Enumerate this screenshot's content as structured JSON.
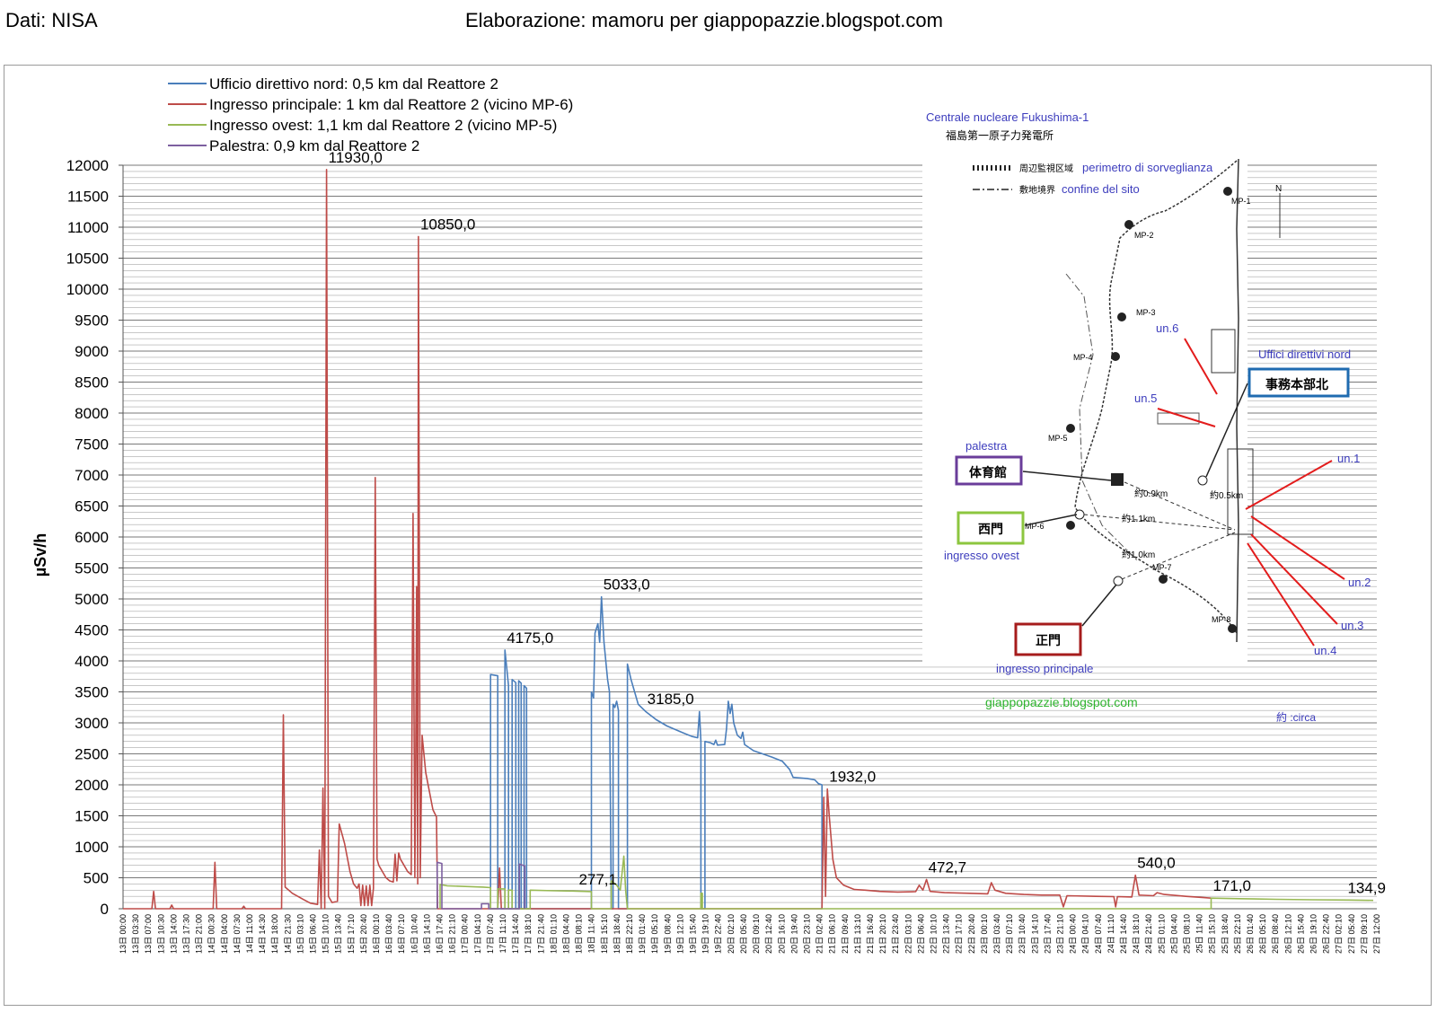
{
  "header": {
    "source": "Dati: NISA",
    "credit": "Elaborazione: mamoru per giappopazzie.blogspot.com"
  },
  "colors": {
    "nord": "#4a7ebb",
    "principale": "#be4b48",
    "ovest": "#98b954",
    "palestra": "#7d60a0",
    "grid": "#8c8c8c"
  },
  "chart_data": {
    "type": "line",
    "title": "",
    "xlabel": "",
    "ylabel": "µSv/h",
    "ylim": [
      0,
      12000
    ],
    "yticks": [
      0,
      500,
      1000,
      1500,
      2000,
      2500,
      3000,
      3500,
      4000,
      4500,
      5000,
      5500,
      6000,
      6500,
      7000,
      7500,
      8000,
      8500,
      9000,
      9500,
      10000,
      10500,
      11000,
      11500,
      12000
    ],
    "grid": true,
    "legend_position": "top-left",
    "x_time_labels": [
      "13日 00:00",
      "13日 03:30",
      "13日 07:00",
      "13日 10:30",
      "13日 14:00",
      "13日 17:30",
      "13日 21:00",
      "14日 00:30",
      "14日 04:00",
      "14日 07:30",
      "14日 11:00",
      "14日 14:30",
      "14日 18:00",
      "14日 21:30",
      "15日 03:10",
      "15日 06:40",
      "15日 10:10",
      "15日 13:40",
      "15日 17:10",
      "15日 20:40",
      "16日 00:10",
      "16日 03:40",
      "16日 07:10",
      "16日 10:40",
      "16日 14:10",
      "16日 17:40",
      "16日 21:10",
      "17日 00:40",
      "17日 04:10",
      "17日 07:40",
      "17日 11:10",
      "17日 14:40",
      "17日 18:10",
      "17日 21:40",
      "18日 01:10",
      "18日 04:40",
      "18日 08:10",
      "18日 11:40",
      "18日 15:10",
      "18日 18:40",
      "18日 22:10",
      "19日 01:40",
      "19日 05:10",
      "19日 08:40",
      "19日 12:10",
      "19日 15:40",
      "19日 19:10",
      "19日 22:40",
      "20日 02:10",
      "20日 05:40",
      "20日 09:10",
      "20日 12:40",
      "20日 16:10",
      "20日 19:40",
      "20日 23:10",
      "21日 02:40",
      "21日 06:10",
      "21日 09:40",
      "21日 13:10",
      "21日 16:40",
      "21日 20:10",
      "21日 23:40",
      "22日 03:10",
      "22日 06:40",
      "22日 10:10",
      "22日 13:40",
      "22日 17:10",
      "22日 20:40",
      "23日 00:10",
      "23日 03:40",
      "23日 07:10",
      "23日 10:40",
      "23日 14:10",
      "23日 17:40",
      "23日 21:10",
      "24日 00:40",
      "24日 04:10",
      "24日 07:40",
      "24日 11:10",
      "24日 14:40",
      "24日 18:10",
      "24日 21:40",
      "25日 01:10",
      "25日 04:40",
      "25日 08:10",
      "25日 11:40",
      "25日 15:10",
      "25日 18:40",
      "25日 22:10",
      "26日 01:40",
      "26日 05:10",
      "26日 08:40",
      "26日 12:10",
      "26日 15:40",
      "26日 19:10",
      "26日 22:40",
      "27日 02:10",
      "27日 05:40",
      "27日 09:10",
      "27日 12:00"
    ],
    "x_range_hours": [
      0,
      348
    ],
    "series": [
      {
        "name": "Ufficio direttivo nord: 0,5 km dal Reattore 2",
        "color": "#4a7ebb",
        "points": [
          [
            102,
            0
          ],
          [
            102,
            3780
          ],
          [
            104,
            3760
          ],
          [
            104,
            0
          ],
          [
            106,
            0
          ],
          [
            106,
            4175
          ],
          [
            107,
            3600
          ],
          [
            107,
            0
          ],
          [
            108,
            0
          ],
          [
            108,
            3700
          ],
          [
            109,
            3650
          ],
          [
            109,
            0
          ],
          [
            109.8,
            0
          ],
          [
            109.8,
            3680
          ],
          [
            110.5,
            3640
          ],
          [
            110.5,
            0
          ],
          [
            111.3,
            0
          ],
          [
            111.3,
            3600
          ],
          [
            112,
            3560
          ],
          [
            112,
            0
          ],
          [
            130,
            0
          ],
          [
            130,
            3500
          ],
          [
            130.6,
            3400
          ],
          [
            131,
            4450
          ],
          [
            131.8,
            4600
          ],
          [
            132.3,
            4300
          ],
          [
            132.8,
            5033
          ],
          [
            133.5,
            4300
          ],
          [
            134.5,
            3700
          ],
          [
            135,
            3500
          ],
          [
            135.5,
            0
          ],
          [
            136,
            0
          ],
          [
            136,
            3300
          ],
          [
            136.5,
            3250
          ],
          [
            137,
            3350
          ],
          [
            137.5,
            3200
          ],
          [
            137.5,
            0
          ],
          [
            140,
            0
          ],
          [
            140,
            3950
          ],
          [
            141,
            3700
          ],
          [
            142,
            3500
          ],
          [
            143,
            3300
          ],
          [
            145,
            3185
          ],
          [
            148,
            3050
          ],
          [
            151,
            2950
          ],
          [
            155,
            2850
          ],
          [
            158,
            2780
          ],
          [
            159.5,
            2760
          ],
          [
            160,
            3180
          ],
          [
            160.4,
            2700
          ],
          [
            160.4,
            0
          ],
          [
            161.5,
            0
          ],
          [
            161.5,
            2700
          ],
          [
            163,
            2680
          ],
          [
            164,
            2650
          ],
          [
            164.5,
            2720
          ],
          [
            165,
            2640
          ],
          [
            167,
            2650
          ],
          [
            167.5,
            2900
          ],
          [
            168,
            3350
          ],
          [
            168.5,
            3150
          ],
          [
            169,
            3300
          ],
          [
            169.5,
            3000
          ],
          [
            170.5,
            2800
          ],
          [
            171.5,
            2750
          ],
          [
            172,
            2850
          ],
          [
            172.5,
            2650
          ],
          [
            175,
            2550
          ],
          [
            180,
            2450
          ],
          [
            183,
            2380
          ],
          [
            185,
            2250
          ],
          [
            186,
            2120
          ],
          [
            190,
            2100
          ],
          [
            192,
            2080
          ],
          [
            193,
            2020
          ],
          [
            194,
            2000
          ],
          [
            194,
            0
          ]
        ]
      },
      {
        "name": "Ingresso principale: 1 km dal Reattore 2 (vicino MP-6)",
        "color": "#be4b48",
        "points": [
          [
            0,
            0
          ],
          [
            8,
            0
          ],
          [
            8.5,
            280
          ],
          [
            9,
            0
          ],
          [
            13,
            0
          ],
          [
            13.5,
            60
          ],
          [
            14,
            0
          ],
          [
            25,
            0
          ],
          [
            25.5,
            750
          ],
          [
            26,
            0
          ],
          [
            33,
            0
          ],
          [
            33.5,
            40
          ],
          [
            34,
            0
          ],
          [
            44,
            0
          ],
          [
            44.5,
            3130
          ],
          [
            45,
            350
          ],
          [
            47,
            250
          ],
          [
            50,
            150
          ],
          [
            52,
            90
          ],
          [
            54,
            70
          ],
          [
            54.5,
            950
          ],
          [
            55,
            0
          ],
          [
            55.5,
            1950
          ],
          [
            56,
            0
          ],
          [
            56.5,
            11930
          ],
          [
            57,
            200
          ],
          [
            58,
            100
          ],
          [
            59.5,
            120
          ],
          [
            60,
            1370
          ],
          [
            61.5,
            1050
          ],
          [
            63,
            600
          ],
          [
            64,
            400
          ],
          [
            65,
            330
          ],
          [
            65.5,
            400
          ],
          [
            66,
            50
          ],
          [
            66.5,
            380
          ],
          [
            67,
            50
          ],
          [
            67.5,
            370
          ],
          [
            68,
            50
          ],
          [
            68.5,
            380
          ],
          [
            69,
            50
          ],
          [
            69.5,
            330
          ],
          [
            70,
            6960
          ],
          [
            70.5,
            800
          ],
          [
            71,
            700
          ],
          [
            72,
            600
          ],
          [
            73,
            500
          ],
          [
            74,
            450
          ],
          [
            75,
            430
          ],
          [
            75.5,
            880
          ],
          [
            76,
            450
          ],
          [
            76.5,
            900
          ],
          [
            77,
            800
          ],
          [
            78,
            700
          ],
          [
            79,
            600
          ],
          [
            80,
            550
          ],
          [
            80.5,
            6380
          ],
          [
            81,
            500
          ],
          [
            81.2,
            2000
          ],
          [
            81.5,
            5200
          ],
          [
            81.8,
            400
          ],
          [
            82,
            10850
          ],
          [
            82.5,
            500
          ],
          [
            83,
            2800
          ],
          [
            84,
            2200
          ],
          [
            85,
            1900
          ],
          [
            86,
            1600
          ],
          [
            87,
            1480
          ],
          [
            87.3,
            0
          ],
          [
            104,
            0
          ],
          [
            104.5,
            660
          ],
          [
            105,
            0
          ],
          [
            194,
            0
          ],
          [
            194.5,
            1800
          ],
          [
            195,
            200
          ],
          [
            195.5,
            1932
          ],
          [
            196,
            1500
          ],
          [
            197,
            800
          ],
          [
            198,
            500
          ],
          [
            200,
            380
          ],
          [
            203,
            310
          ],
          [
            206,
            300
          ],
          [
            210,
            280
          ],
          [
            215,
            270
          ],
          [
            220,
            275
          ],
          [
            221,
            380
          ],
          [
            222,
            300
          ],
          [
            223,
            472.7
          ],
          [
            224,
            280
          ],
          [
            228,
            260
          ],
          [
            235,
            250
          ],
          [
            240,
            240
          ],
          [
            241,
            420
          ],
          [
            242,
            300
          ],
          [
            245,
            250
          ],
          [
            250,
            230
          ],
          [
            255,
            220
          ],
          [
            260,
            220
          ],
          [
            261,
            30
          ],
          [
            262,
            210
          ],
          [
            270,
            200
          ],
          [
            275,
            195
          ],
          [
            275.5,
            30
          ],
          [
            276,
            195
          ],
          [
            280,
            190
          ],
          [
            281,
            540
          ],
          [
            282,
            220
          ],
          [
            286,
            210
          ],
          [
            287,
            260
          ],
          [
            289,
            230
          ],
          [
            295,
            200
          ],
          [
            300,
            180
          ],
          [
            302,
            171
          ]
        ]
      },
      {
        "name": "Ingresso ovest: 1,1  km dal Reattore 2 (vicino MP-5)",
        "color": "#98b954",
        "points": [
          [
            88,
            0
          ],
          [
            88,
            390
          ],
          [
            90,
            370
          ],
          [
            95,
            360
          ],
          [
            100,
            350
          ],
          [
            102,
            340
          ],
          [
            102,
            0
          ],
          [
            104,
            0
          ],
          [
            104,
            320
          ],
          [
            106,
            320
          ],
          [
            106,
            0
          ],
          [
            107,
            0
          ],
          [
            107,
            300
          ],
          [
            108,
            300
          ],
          [
            108,
            0
          ],
          [
            113,
            0
          ],
          [
            113,
            300
          ],
          [
            120,
            290
          ],
          [
            125,
            285
          ],
          [
            130,
            277.1
          ],
          [
            130,
            0
          ],
          [
            135.5,
            0
          ],
          [
            135.5,
            450
          ],
          [
            137,
            380
          ],
          [
            138,
            300
          ],
          [
            139,
            850
          ],
          [
            139.5,
            300
          ],
          [
            140,
            0
          ],
          [
            160.4,
            0
          ],
          [
            160.4,
            250
          ],
          [
            160.8,
            250
          ],
          [
            160.8,
            0
          ],
          [
            302,
            0
          ],
          [
            302,
            171
          ],
          [
            310,
            162
          ],
          [
            320,
            152
          ],
          [
            330,
            145
          ],
          [
            340,
            140
          ],
          [
            347,
            134.9
          ]
        ]
      },
      {
        "name": "Palestra: 0,9 km dal Reattore 2",
        "color": "#7d60a0",
        "points": [
          [
            87.2,
            0
          ],
          [
            87.2,
            750
          ],
          [
            88.5,
            730
          ],
          [
            88.5,
            0
          ],
          [
            99.5,
            0
          ],
          [
            99.5,
            80
          ],
          [
            101.5,
            80
          ],
          [
            101.5,
            0
          ],
          [
            110,
            0
          ],
          [
            110,
            720
          ],
          [
            111.5,
            690
          ],
          [
            111.5,
            0
          ]
        ]
      }
    ],
    "data_labels": [
      {
        "text": "11930,0",
        "x": 56.5,
        "y": 11930
      },
      {
        "text": "10850,0",
        "x": 82,
        "y": 10850
      },
      {
        "text": "4175,0",
        "x": 106,
        "y": 4175
      },
      {
        "text": "5033,0",
        "x": 132.8,
        "y": 5033
      },
      {
        "text": "3185,0",
        "x": 145,
        "y": 3185
      },
      {
        "text": "277,1",
        "x": 126,
        "y": 277.1
      },
      {
        "text": "1932,0",
        "x": 195.5,
        "y": 1932
      },
      {
        "text": "472,7",
        "x": 223,
        "y": 472.7
      },
      {
        "text": "540,0",
        "x": 281,
        "y": 540
      },
      {
        "text": "171,0",
        "x": 302,
        "y": 171
      },
      {
        "text": "134,9",
        "x": 347,
        "y": 134.9
      }
    ]
  },
  "map": {
    "title_it": "Centrale nucleare Fukushima-1",
    "title_jp": "福島第一原子力発電所",
    "legend_perimeter_jp": "周辺監視区域",
    "legend_perimeter_it": "perimetro di sorveglianza",
    "legend_border_jp": "敷地境界",
    "legend_border_it": "confine del sito",
    "north": "N",
    "mp_labels": [
      "MP-1",
      "MP-2",
      "MP-3",
      "MP-4",
      "MP-5",
      "MP-6",
      "MP-7",
      "MP-8"
    ],
    "units": [
      "un.1",
      "un.2",
      "un.3",
      "un.4",
      "un.5",
      "un.6"
    ],
    "nord_it": "Uffici direttivi nord",
    "nord_jp": "事務本部北",
    "palestra_it": "palestra",
    "palestra_jp": "体育館",
    "ovest_jp": "西門",
    "ovest_it": "ingresso ovest",
    "principale_jp": "正門",
    "principale_it": "ingresso principale",
    "dist_09": "約0.9km",
    "dist_05": "約0.5km",
    "dist_11": "約1.1km",
    "dist_10": "約1.0km",
    "site": "giappopazzie.blogspot.com",
    "circa": "約 :circa"
  }
}
